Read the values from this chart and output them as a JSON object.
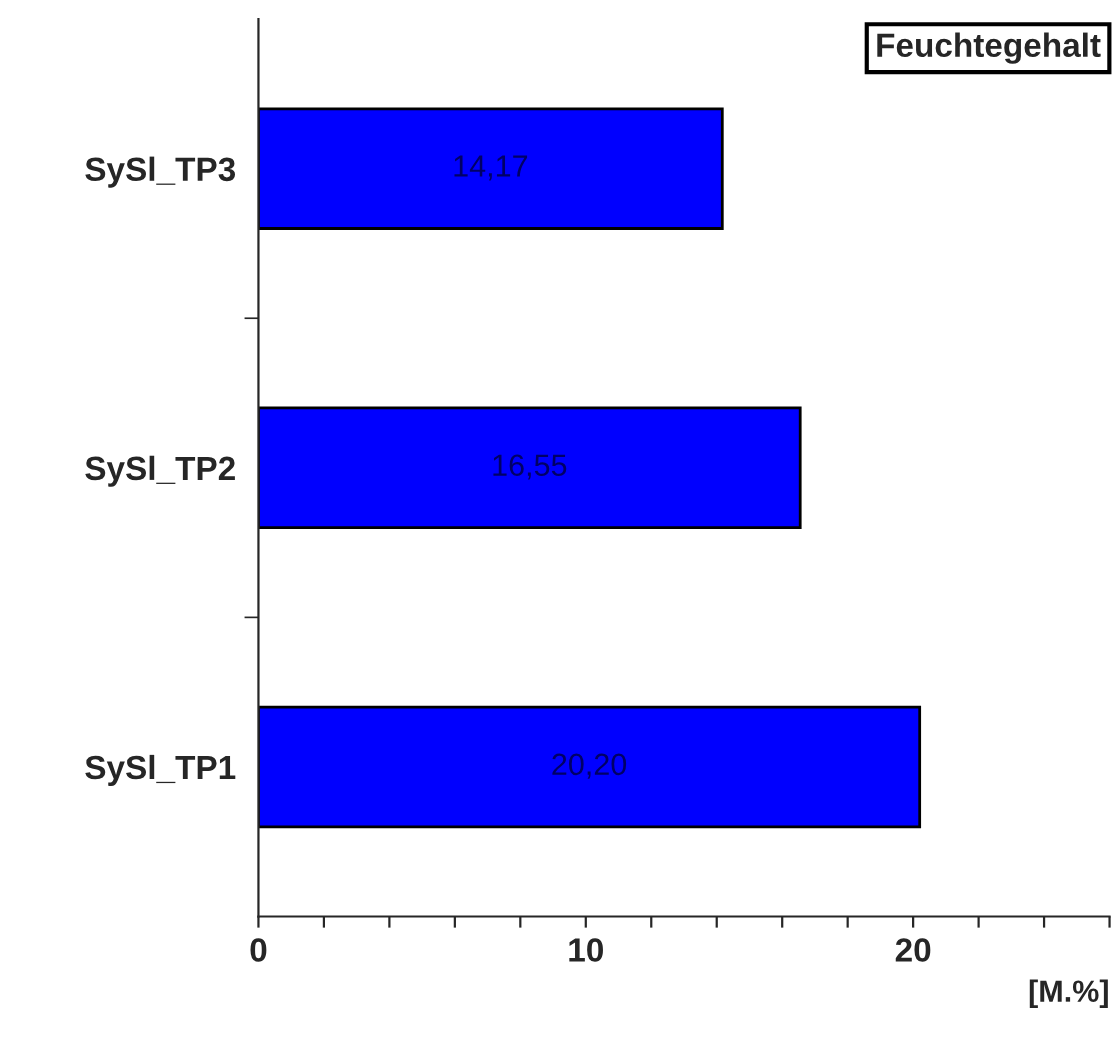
{
  "chart_data": {
    "type": "bar",
    "orientation": "horizontal",
    "categories": [
      "SySl_TP3",
      "SySl_TP2",
      "SySl_TP1"
    ],
    "series": [
      {
        "color": "#0000ff",
        "values": [
          14.17,
          16.55,
          20.2
        ],
        "value_labels": [
          "14,17",
          "16,55",
          "20,20"
        ]
      }
    ],
    "xlabel": "[M.%]",
    "annotations": [
      "Feuchtegehalt"
    ],
    "xlim": [
      0,
      26
    ],
    "xticks": [
      0,
      {
        "value": 2,
        "label": null
      },
      {
        "value": 4,
        "label": null
      },
      {
        "value": 6,
        "label": null
      },
      {
        "value": 8,
        "label": null
      },
      10,
      {
        "value": 12,
        "label": null
      },
      {
        "value": 14,
        "label": null
      },
      {
        "value": 16,
        "label": null
      },
      {
        "value": 18,
        "label": null
      },
      20,
      {
        "value": 22,
        "label": null
      },
      {
        "value": 24,
        "label": null
      },
      {
        "value": 26,
        "label": null
      }
    ],
    "grid": false,
    "legend": false
  }
}
